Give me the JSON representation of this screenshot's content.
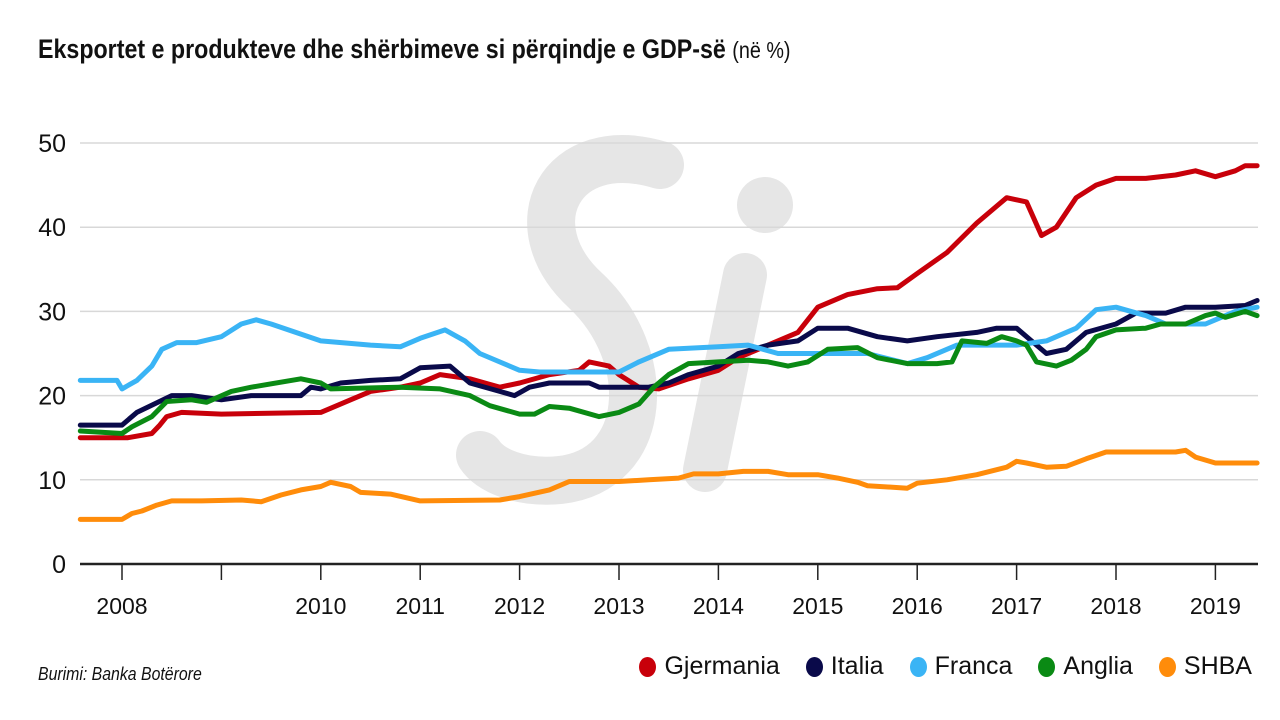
{
  "chart_data": {
    "type": "line",
    "title": "Eksportet e produkteve dhe shërbimeve si përqindje e GDP-së",
    "subtitle": "(në %)",
    "source": "Burimi: Banka Botërore",
    "watermark": "Si",
    "xlabel": "",
    "ylabel": "",
    "ylim": [
      0,
      50
    ],
    "yticks": [
      "0",
      "10",
      "20",
      "30",
      "40",
      "50"
    ],
    "xticks": [
      {
        "year": 2008,
        "label": "2008"
      },
      {
        "year": 2009,
        "label": ""
      },
      {
        "year": 2010,
        "label": "2010"
      },
      {
        "year": 2011,
        "label": "2011"
      },
      {
        "year": 2012,
        "label": "2012"
      },
      {
        "year": 2013,
        "label": "2013"
      },
      {
        "year": 2014,
        "label": "2014"
      },
      {
        "year": 2015,
        "label": "2015"
      },
      {
        "year": 2016,
        "label": "2016"
      },
      {
        "year": 2017,
        "label": "2017"
      },
      {
        "year": 2018,
        "label": "2018"
      },
      {
        "year": 2019,
        "label": "2019"
      }
    ],
    "xlim": [
      2007.58,
      2019.42
    ],
    "grid": true,
    "legend_position": "bottom-right",
    "series": [
      {
        "name": "Gjermania",
        "color": "#c8000a",
        "points": [
          [
            2007.58,
            15
          ],
          [
            2008.06,
            15
          ],
          [
            2008.3,
            15.5
          ],
          [
            2008.38,
            16.5
          ],
          [
            2008.45,
            17.5
          ],
          [
            2008.6,
            18
          ],
          [
            2009,
            17.8
          ],
          [
            2010,
            18
          ],
          [
            2010.3,
            19.5
          ],
          [
            2010.5,
            20.5
          ],
          [
            2010.8,
            21
          ],
          [
            2011,
            21.5
          ],
          [
            2011.2,
            22.5
          ],
          [
            2011.5,
            22
          ],
          [
            2011.8,
            21
          ],
          [
            2012,
            21.5
          ],
          [
            2012.3,
            22.5
          ],
          [
            2012.6,
            23
          ],
          [
            2012.7,
            24
          ],
          [
            2012.9,
            23.5
          ],
          [
            2013,
            22.5
          ],
          [
            2013.2,
            21
          ],
          [
            2013.4,
            20.8
          ],
          [
            2013.7,
            22
          ],
          [
            2014,
            23
          ],
          [
            2014.2,
            24.5
          ],
          [
            2014.5,
            26
          ],
          [
            2014.8,
            27.5
          ],
          [
            2015,
            30.5
          ],
          [
            2015.3,
            32
          ],
          [
            2015.6,
            32.7
          ],
          [
            2015.8,
            32.8
          ],
          [
            2016,
            34.5
          ],
          [
            2016.3,
            37
          ],
          [
            2016.6,
            40.5
          ],
          [
            2016.8,
            42.5
          ],
          [
            2016.9,
            43.5
          ],
          [
            2017.1,
            43
          ],
          [
            2017.25,
            39
          ],
          [
            2017.4,
            40
          ],
          [
            2017.6,
            43.5
          ],
          [
            2017.8,
            45
          ],
          [
            2018,
            45.8
          ],
          [
            2018.3,
            45.8
          ],
          [
            2018.6,
            46.2
          ],
          [
            2018.8,
            46.7
          ],
          [
            2019,
            46
          ],
          [
            2019.2,
            46.7
          ],
          [
            2019.3,
            47.3
          ],
          [
            2019.42,
            47.3
          ]
        ]
      },
      {
        "name": "Italia",
        "color": "#0a0a4a",
        "points": [
          [
            2007.58,
            16.5
          ],
          [
            2008,
            16.5
          ],
          [
            2008.15,
            18
          ],
          [
            2008.5,
            20
          ],
          [
            2008.7,
            20
          ],
          [
            2009,
            19.5
          ],
          [
            2009.3,
            20
          ],
          [
            2009.8,
            20
          ],
          [
            2009.9,
            21
          ],
          [
            2010,
            20.8
          ],
          [
            2010.2,
            21.5
          ],
          [
            2010.5,
            21.8
          ],
          [
            2010.8,
            22
          ],
          [
            2011,
            23.3
          ],
          [
            2011.3,
            23.5
          ],
          [
            2011.5,
            21.5
          ],
          [
            2011.8,
            20.5
          ],
          [
            2011.95,
            20
          ],
          [
            2012.1,
            21
          ],
          [
            2012.3,
            21.5
          ],
          [
            2012.7,
            21.5
          ],
          [
            2012.8,
            21
          ],
          [
            2013.3,
            21
          ],
          [
            2013.5,
            21.5
          ],
          [
            2013.7,
            22.5
          ],
          [
            2014,
            23.5
          ],
          [
            2014.2,
            25
          ],
          [
            2014.5,
            26
          ],
          [
            2014.8,
            26.5
          ],
          [
            2015,
            28
          ],
          [
            2015.3,
            28
          ],
          [
            2015.6,
            27
          ],
          [
            2015.9,
            26.5
          ],
          [
            2016.2,
            27
          ],
          [
            2016.6,
            27.5
          ],
          [
            2016.8,
            28
          ],
          [
            2017,
            28
          ],
          [
            2017.15,
            26.5
          ],
          [
            2017.3,
            25
          ],
          [
            2017.5,
            25.5
          ],
          [
            2017.7,
            27.5
          ],
          [
            2018,
            28.5
          ],
          [
            2018.2,
            29.8
          ],
          [
            2018.5,
            29.8
          ],
          [
            2018.7,
            30.5
          ],
          [
            2019,
            30.5
          ],
          [
            2019.3,
            30.7
          ],
          [
            2019.42,
            31.3
          ]
        ]
      },
      {
        "name": "Franca",
        "color": "#3ab4f5",
        "points": [
          [
            2007.58,
            21.8
          ],
          [
            2007.95,
            21.8
          ],
          [
            2008,
            20.8
          ],
          [
            2008.15,
            21.8
          ],
          [
            2008.3,
            23.5
          ],
          [
            2008.4,
            25.5
          ],
          [
            2008.55,
            26.3
          ],
          [
            2008.75,
            26.3
          ],
          [
            2009,
            27
          ],
          [
            2009.2,
            28.5
          ],
          [
            2009.35,
            29
          ],
          [
            2009.5,
            28.5
          ],
          [
            2010,
            26.5
          ],
          [
            2010.5,
            26
          ],
          [
            2010.8,
            25.8
          ],
          [
            2011,
            26.8
          ],
          [
            2011.25,
            27.8
          ],
          [
            2011.45,
            26.5
          ],
          [
            2011.6,
            25
          ],
          [
            2012,
            23
          ],
          [
            2012.2,
            22.8
          ],
          [
            2013,
            22.8
          ],
          [
            2013.2,
            24
          ],
          [
            2013.5,
            25.5
          ],
          [
            2014,
            25.8
          ],
          [
            2014.3,
            26
          ],
          [
            2014.6,
            25
          ],
          [
            2015.5,
            25
          ],
          [
            2015.9,
            23.8
          ],
          [
            2016.1,
            24.5
          ],
          [
            2016.4,
            26
          ],
          [
            2017,
            26
          ],
          [
            2017.3,
            26.5
          ],
          [
            2017.6,
            28
          ],
          [
            2017.8,
            30.2
          ],
          [
            2018,
            30.5
          ],
          [
            2018.3,
            29.5
          ],
          [
            2018.5,
            28.5
          ],
          [
            2018.9,
            28.5
          ],
          [
            2019,
            29
          ],
          [
            2019.2,
            30
          ],
          [
            2019.42,
            30.5
          ]
        ]
      },
      {
        "name": "Anglia",
        "color": "#0a8a14",
        "points": [
          [
            2007.58,
            15.8
          ],
          [
            2008,
            15.5
          ],
          [
            2008.1,
            16.3
          ],
          [
            2008.3,
            17.5
          ],
          [
            2008.45,
            19.3
          ],
          [
            2008.7,
            19.5
          ],
          [
            2008.85,
            19.2
          ],
          [
            2009.1,
            20.5
          ],
          [
            2009.3,
            21
          ],
          [
            2009.8,
            22
          ],
          [
            2010,
            21.5
          ],
          [
            2010.1,
            20.8
          ],
          [
            2010.8,
            21
          ],
          [
            2011.2,
            20.8
          ],
          [
            2011.5,
            20
          ],
          [
            2011.7,
            18.8
          ],
          [
            2012,
            17.8
          ],
          [
            2012.15,
            17.8
          ],
          [
            2012.3,
            18.7
          ],
          [
            2012.5,
            18.5
          ],
          [
            2012.8,
            17.5
          ],
          [
            2013,
            18
          ],
          [
            2013.2,
            19
          ],
          [
            2013.35,
            21
          ],
          [
            2013.5,
            22.5
          ],
          [
            2013.7,
            23.8
          ],
          [
            2014,
            24
          ],
          [
            2014.3,
            24.2
          ],
          [
            2014.5,
            24
          ],
          [
            2014.7,
            23.5
          ],
          [
            2014.9,
            24
          ],
          [
            2015.1,
            25.5
          ],
          [
            2015.4,
            25.7
          ],
          [
            2015.6,
            24.5
          ],
          [
            2015.9,
            23.8
          ],
          [
            2016.2,
            23.8
          ],
          [
            2016.35,
            24
          ],
          [
            2016.45,
            26.5
          ],
          [
            2016.7,
            26.2
          ],
          [
            2016.85,
            27
          ],
          [
            2017,
            26.5
          ],
          [
            2017.1,
            26
          ],
          [
            2017.2,
            24
          ],
          [
            2017.4,
            23.5
          ],
          [
            2017.55,
            24.2
          ],
          [
            2017.7,
            25.5
          ],
          [
            2017.8,
            27
          ],
          [
            2018,
            27.8
          ],
          [
            2018.3,
            28
          ],
          [
            2018.45,
            28.5
          ],
          [
            2018.7,
            28.5
          ],
          [
            2018.9,
            29.5
          ],
          [
            2019,
            29.8
          ],
          [
            2019.1,
            29.3
          ],
          [
            2019.3,
            30
          ],
          [
            2019.42,
            29.5
          ]
        ]
      },
      {
        "name": "SHBA",
        "color": "#ff8c0a",
        "points": [
          [
            2007.58,
            5.3
          ],
          [
            2008,
            5.3
          ],
          [
            2008.1,
            6
          ],
          [
            2008.2,
            6.3
          ],
          [
            2008.35,
            7
          ],
          [
            2008.5,
            7.5
          ],
          [
            2008.8,
            7.5
          ],
          [
            2009.2,
            7.6
          ],
          [
            2009.4,
            7.4
          ],
          [
            2009.6,
            8.2
          ],
          [
            2009.8,
            8.8
          ],
          [
            2010,
            9.2
          ],
          [
            2010.1,
            9.7
          ],
          [
            2010.3,
            9.2
          ],
          [
            2010.4,
            8.5
          ],
          [
            2010.7,
            8.3
          ],
          [
            2011,
            7.5
          ],
          [
            2011.8,
            7.6
          ],
          [
            2012,
            8
          ],
          [
            2012.3,
            8.8
          ],
          [
            2012.5,
            9.8
          ],
          [
            2013,
            9.8
          ],
          [
            2013.3,
            10
          ],
          [
            2013.6,
            10.2
          ],
          [
            2013.75,
            10.7
          ],
          [
            2014,
            10.7
          ],
          [
            2014.25,
            11
          ],
          [
            2014.5,
            11
          ],
          [
            2014.7,
            10.6
          ],
          [
            2015,
            10.6
          ],
          [
            2015.2,
            10.2
          ],
          [
            2015.4,
            9.7
          ],
          [
            2015.5,
            9.3
          ],
          [
            2015.9,
            9
          ],
          [
            2016,
            9.6
          ],
          [
            2016.3,
            10
          ],
          [
            2016.6,
            10.6
          ],
          [
            2016.9,
            11.5
          ],
          [
            2017,
            12.2
          ],
          [
            2017.1,
            12
          ],
          [
            2017.3,
            11.5
          ],
          [
            2017.5,
            11.6
          ],
          [
            2017.7,
            12.5
          ],
          [
            2017.9,
            13.3
          ],
          [
            2018.6,
            13.3
          ],
          [
            2018.7,
            13.5
          ],
          [
            2018.8,
            12.7
          ],
          [
            2019,
            12
          ],
          [
            2019.42,
            12
          ]
        ]
      }
    ]
  }
}
